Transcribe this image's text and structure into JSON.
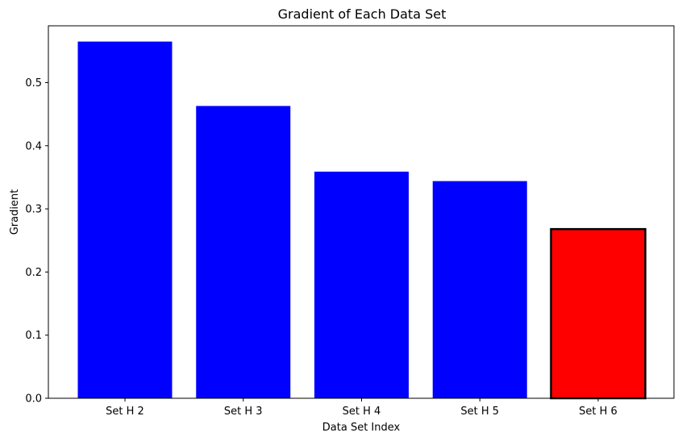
{
  "chart_data": {
    "type": "bar",
    "title": "Gradient of Each Data Set",
    "xlabel": "Data Set Index",
    "ylabel": "Gradient",
    "categories": [
      "Set H 2",
      "Set H 3",
      "Set H 4",
      "Set H 5",
      "Set H 6"
    ],
    "values": [
      0.565,
      0.463,
      0.359,
      0.344,
      0.268
    ],
    "bar_colors": [
      "#0000ff",
      "#0000ff",
      "#0000ff",
      "#0000ff",
      "#ff0000"
    ],
    "highlighted_index": 4,
    "highlight_edge_color": "#000000",
    "ylim": [
      0,
      0.59
    ],
    "yticks": [
      0.0,
      0.1,
      0.2,
      0.3,
      0.4,
      0.5
    ],
    "ytick_labels": [
      "0.0",
      "0.1",
      "0.2",
      "0.3",
      "0.4",
      "0.5"
    ],
    "grid": false,
    "legend": "none"
  }
}
